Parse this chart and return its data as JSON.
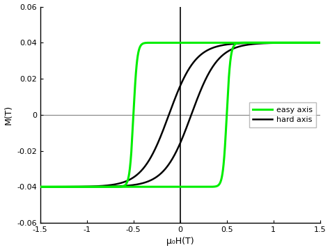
{
  "title": "",
  "xlabel": "μ₀H(T)",
  "ylabel": "M(T)",
  "xlim": [
    -1.5,
    1.5
  ],
  "ylim": [
    -0.06,
    0.06
  ],
  "xticks": [
    -1.5,
    -1.0,
    -0.5,
    0.0,
    0.5,
    1.0,
    1.5
  ],
  "xtick_labels": [
    "-1.5",
    "-1",
    "-0.5",
    "0",
    "0.5",
    "1",
    "1.5"
  ],
  "yticks": [
    -0.06,
    -0.04,
    -0.02,
    0.0,
    0.02,
    0.04,
    0.06
  ],
  "ytick_labels": [
    "-0.06",
    "-0.04",
    "-0.02",
    "0",
    "0.02",
    "0.04",
    "0.06"
  ],
  "easy_color": "#00ee00",
  "hard_color": "#000000",
  "easy_label": "easy axis",
  "hard_label": "hard axis",
  "Ms": 0.04,
  "background_color": "#ffffff"
}
